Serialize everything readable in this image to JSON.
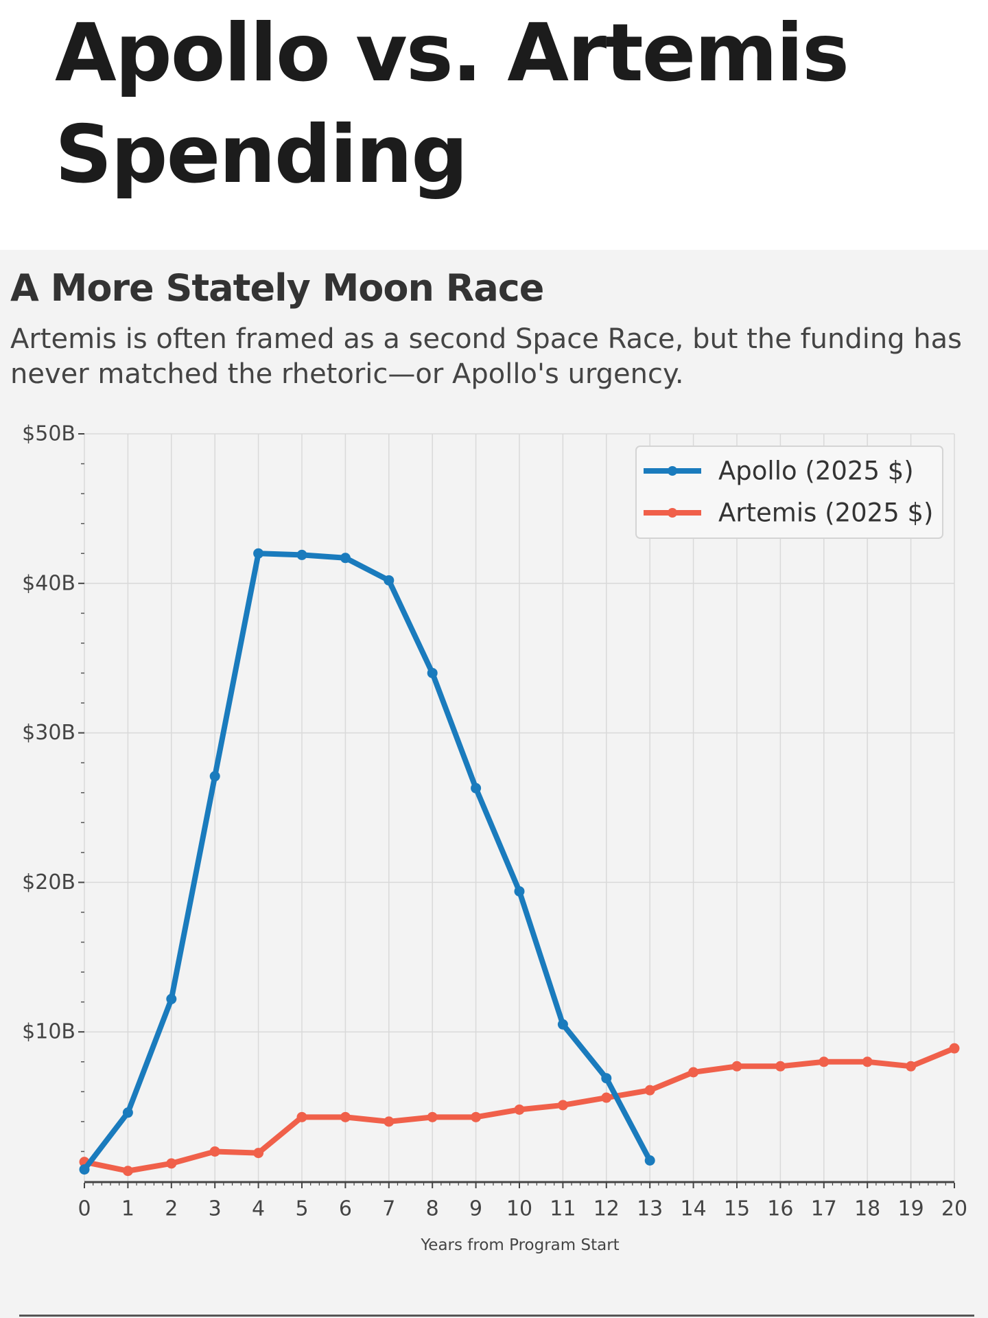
{
  "page": {
    "headline": "Apollo vs. Artemis Spending"
  },
  "chart_data": {
    "type": "line",
    "title": "A More Stately Moon Race",
    "subtitle": "Artemis is often framed as a second Space Race, but the funding has never matched the rhetoric—or Apollo's urgency.",
    "xlabel": "Years from Program Start",
    "ylabel": "",
    "x": [
      0,
      1,
      2,
      3,
      4,
      5,
      6,
      7,
      8,
      9,
      10,
      11,
      12,
      13,
      14,
      15,
      16,
      17,
      18,
      19,
      20
    ],
    "xlim": [
      0,
      20
    ],
    "ylim": [
      0,
      50
    ],
    "yticks": [
      10,
      20,
      30,
      40,
      50
    ],
    "ytick_labels": [
      "$10B",
      "$20B",
      "$30B",
      "$40B",
      "$50B"
    ],
    "grid": true,
    "legend_position": "top-right",
    "series": [
      {
        "name": "Apollo (2025 $)",
        "color": "#1a7bbd",
        "x": [
          0,
          1,
          2,
          3,
          4,
          5,
          6,
          7,
          8,
          9,
          10,
          11,
          12,
          13
        ],
        "values": [
          0.8,
          4.6,
          12.2,
          27.1,
          42.0,
          41.9,
          41.7,
          40.2,
          34.0,
          26.3,
          19.4,
          10.5,
          6.9,
          1.4
        ]
      },
      {
        "name": "Artemis (2025 $)",
        "color": "#f0604a",
        "x": [
          0,
          1,
          2,
          3,
          4,
          5,
          6,
          7,
          8,
          9,
          10,
          11,
          12,
          13,
          14,
          15,
          16,
          17,
          18,
          19,
          20
        ],
        "values": [
          1.3,
          0.7,
          1.2,
          2.0,
          1.9,
          4.3,
          4.3,
          4.0,
          4.3,
          4.3,
          4.8,
          5.1,
          5.6,
          6.1,
          7.3,
          7.7,
          7.7,
          8.0,
          8.0,
          7.7,
          8.9
        ]
      }
    ]
  }
}
